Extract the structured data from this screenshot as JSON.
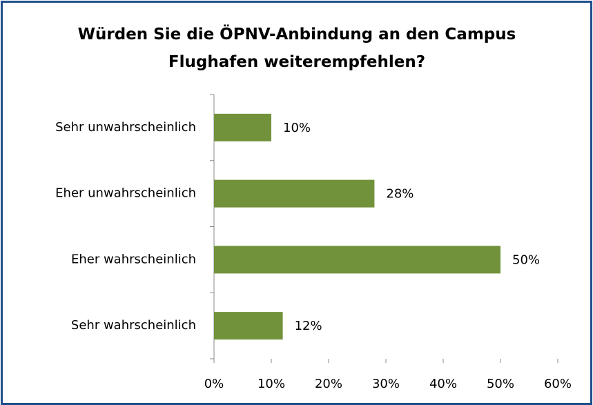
{
  "chart_data": {
    "type": "hbar",
    "title": "Würden Sie die ÖPNV-Anbindung an den Campus Flughafen weiterempfehlen?",
    "categories": [
      "Sehr unwahrscheinlich",
      "Eher unwahrscheinlich",
      "Eher wahrscheinlich",
      "Sehr wahrscheinlich"
    ],
    "values": [
      10,
      28,
      50,
      12
    ],
    "value_labels": [
      "10%",
      "28%",
      "50%",
      "12%"
    ],
    "color": "#71923a",
    "xlim": [
      0,
      60
    ],
    "xticks": [
      {
        "value": 0,
        "label": "0%"
      },
      {
        "value": 10,
        "label": "10%"
      },
      {
        "value": 20,
        "label": "20%"
      },
      {
        "value": 30,
        "label": "30%"
      },
      {
        "value": 40,
        "label": "40%"
      },
      {
        "value": 50,
        "label": "50%"
      },
      {
        "value": 60,
        "label": "60%"
      }
    ],
    "grid": false
  }
}
